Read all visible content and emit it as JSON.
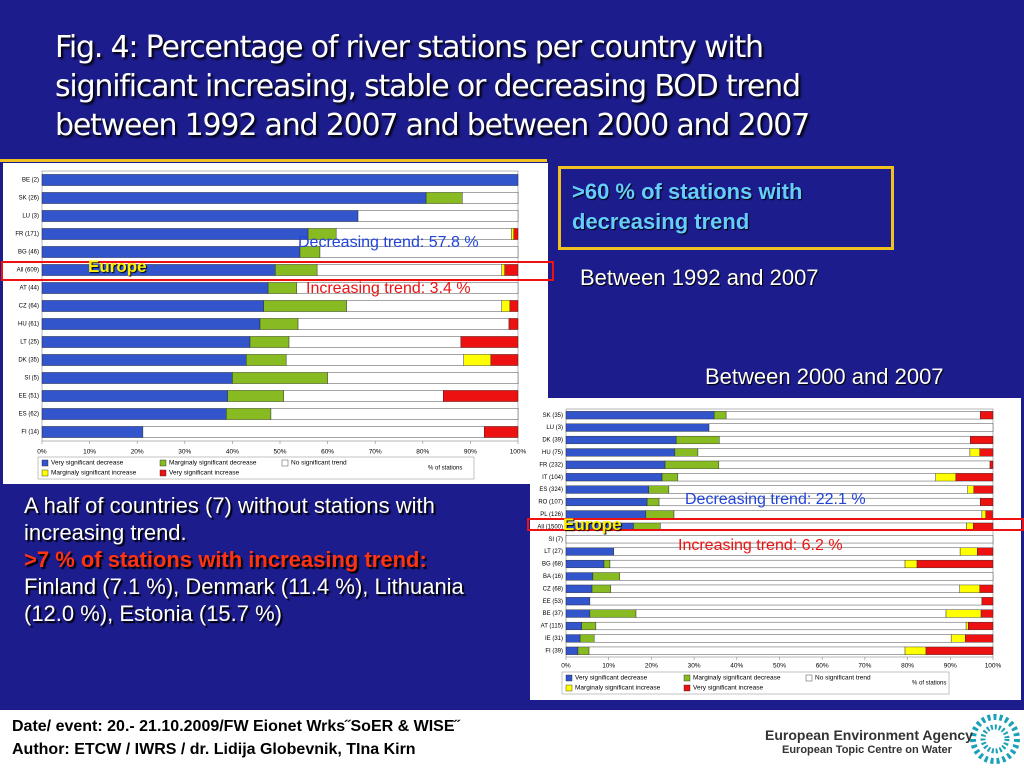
{
  "slide": {
    "title_lines": [
      "Fig. 4: Percentage of river stations per country with",
      "significant increasing, stable or decreasing BOD trend",
      "between 1992 and 2007 and between 2000 and 2007"
    ],
    "callout": ">60 % of stations with decreasing trend",
    "body": {
      "intro": "A half of countries (7) without stations with increasing trend.",
      "highlight": ">7 % of stations with increasing trend:",
      "details": "Finland (7.1 %), Denmark (11.4 %), Lithuania (12.0 %), Estonia (15.7 %)"
    },
    "footer": [
      "Date/ event: 20.- 21.10.2009/FW Eionet Wrks˝SoER & WISE˝",
      "Author: ETCW / IWRS / dr. Lidija Globevnik, TIna Kirn"
    ],
    "logo": [
      "European Environment Agency",
      "European Topic Centre on Water"
    ]
  },
  "chart_data": [
    {
      "type": "bar",
      "orientation": "horizontal",
      "stacked": true,
      "period": "Between 1992 and 2007",
      "region_label": "Europe",
      "decreasing_label": "Decreasing trend: 57.8 %",
      "increasing_label": "Increasing trend: 3.4 %",
      "xlabel": "% of stations",
      "categories": [
        "BE (2)",
        "SK (26)",
        "LU (3)",
        "FR (171)",
        "BG (46)",
        "All (609)",
        "AT (44)",
        "CZ (64)",
        "HU (61)",
        "LT (25)",
        "DK (35)",
        "SI (5)",
        "EE (51)",
        "ES (62)",
        "FI (14)"
      ],
      "series": [
        {
          "name": "Very significant decrease",
          "color": "#3355cc",
          "values": [
            100,
            80.7,
            66.4,
            55.9,
            54.2,
            49.0,
            47.5,
            46.6,
            45.8,
            43.7,
            42.9,
            40.0,
            39.0,
            38.7,
            21.2
          ]
        },
        {
          "name": "Marginaly significant decrease",
          "color": "#88bb22",
          "values": [
            0,
            7.6,
            0,
            5.9,
            4.2,
            8.8,
            6.0,
            17.4,
            8.0,
            8.2,
            8.4,
            20.0,
            11.8,
            9.4,
            0
          ]
        },
        {
          "name": "No significant trend",
          "color": "#ffffff",
          "values": [
            0,
            11.7,
            33.6,
            36.8,
            41.6,
            38.8,
            46.5,
            32.6,
            44.3,
            36.1,
            37.3,
            40.0,
            33.5,
            51.9,
            71.7
          ]
        },
        {
          "name": "Marginaly significant increase",
          "color": "#ffff00",
          "values": [
            0,
            0,
            0,
            0.5,
            0,
            0.6,
            0,
            1.7,
            0,
            0,
            5.7,
            0,
            0,
            0,
            0
          ]
        },
        {
          "name": "Very significant increase",
          "color": "#ee1111",
          "values": [
            0,
            0,
            0,
            0.9,
            0,
            2.8,
            0,
            1.7,
            1.9,
            12.0,
            5.7,
            0,
            15.7,
            0,
            7.1
          ]
        }
      ],
      "xlim": [
        0,
        100
      ],
      "xticks": [
        {
          "value": 0,
          "label": "0%"
        },
        {
          "value": 10,
          "label": "10%"
        },
        {
          "value": 20,
          "label": "20%"
        },
        {
          "value": 30,
          "label": "30%"
        },
        {
          "value": 40,
          "label": "40%"
        },
        {
          "value": 50,
          "label": "50%"
        },
        {
          "value": 60,
          "label": "60%"
        },
        {
          "value": 70,
          "label": "70%"
        },
        {
          "value": 80,
          "label": "80%"
        },
        {
          "value": 90,
          "label": "90%"
        },
        {
          "value": 100,
          "label": "100%"
        }
      ]
    },
    {
      "type": "bar",
      "orientation": "horizontal",
      "stacked": true,
      "period": "Between 2000 and 2007",
      "region_label": "Europe",
      "decreasing_label": "Decreasing trend: 22.1 %",
      "increasing_label": "Increasing trend: 6.2 %",
      "xlabel": "% of stations",
      "categories": [
        "SK (35)",
        "LU (3)",
        "DK (39)",
        "HU (75)",
        "FR (232)",
        "IT (104)",
        "ES (324)",
        "RO (107)",
        "PL (126)",
        "All (1500)",
        "SI (7)",
        "LT (27)",
        "BG (68)",
        "BA (16)",
        "CZ (68)",
        "EE (53)",
        "BE (37)",
        "AT (115)",
        "IE (31)",
        "FI (39)"
      ],
      "series": [
        {
          "name": "Very significant decrease",
          "color": "#3355cc",
          "values": [
            34.7,
            33.5,
            25.8,
            25.5,
            23.2,
            22.5,
            19.4,
            19.0,
            18.7,
            15.8,
            0,
            11.2,
            8.9,
            6.3,
            6.1,
            5.6,
            5.6,
            3.7,
            3.3,
            2.8
          ]
        },
        {
          "name": "Marginaly significant decrease",
          "color": "#88bb22",
          "values": [
            2.8,
            0,
            10.1,
            5.4,
            12.6,
            3.7,
            4.7,
            2.8,
            6.6,
            6.3,
            0,
            0,
            1.4,
            6.3,
            4.4,
            0,
            10.8,
            3.3,
            3.3,
            2.6
          ]
        },
        {
          "name": "No significant trend",
          "color": "#ffffff",
          "values": [
            59.5,
            66.5,
            58.8,
            63.7,
            63.5,
            60.4,
            70.0,
            75.2,
            72.1,
            71.7,
            100,
            81.1,
            69.1,
            87.4,
            81.7,
            91.8,
            72.6,
            86.7,
            83.6,
            74.0
          ]
        },
        {
          "name": "Marginaly significant increase",
          "color": "#ffff00",
          "values": [
            0,
            0,
            0,
            2.3,
            0,
            4.7,
            1.4,
            0,
            0.9,
            1.6,
            0,
            4.0,
            2.8,
            0,
            4.7,
            0,
            8.2,
            0.5,
            3.3,
            4.9
          ]
        },
        {
          "name": "Very significant increase",
          "color": "#ee1111",
          "values": [
            3.0,
            0,
            5.3,
            3.1,
            0.7,
            8.7,
            4.5,
            3.0,
            1.6,
            4.6,
            0,
            3.7,
            17.8,
            0,
            3.1,
            2.6,
            2.8,
            5.8,
            6.5,
            15.7
          ]
        }
      ],
      "xlim": [
        0,
        100
      ],
      "xticks": [
        {
          "value": 0,
          "label": "0%"
        },
        {
          "value": 10,
          "label": "10%"
        },
        {
          "value": 20,
          "label": "20%"
        },
        {
          "value": 30,
          "label": "30%"
        },
        {
          "value": 40,
          "label": "40%"
        },
        {
          "value": 50,
          "label": "50%"
        },
        {
          "value": 60,
          "label": "60%"
        },
        {
          "value": 70,
          "label": "70%"
        },
        {
          "value": 80,
          "label": "80%"
        },
        {
          "value": 90,
          "label": "90%"
        },
        {
          "value": 100,
          "label": "100%"
        }
      ]
    }
  ]
}
